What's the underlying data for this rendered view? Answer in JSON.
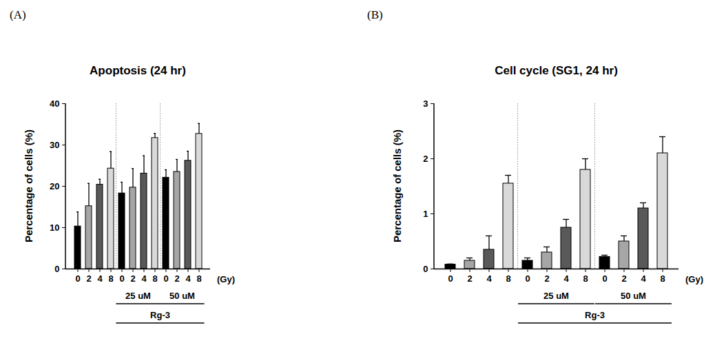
{
  "chart_data": [
    {
      "type": "bar",
      "panel_label": "(A)",
      "title": "Apoptosis (24 hr)",
      "ylabel": "Percentage of cells (%)",
      "xlabel": "(Gy)",
      "categories": [
        "0",
        "2",
        "4",
        "8",
        "0",
        "2",
        "4",
        "8",
        "0",
        "2",
        "4",
        "8"
      ],
      "groups": [
        [
          null,
          null,
          null,
          null,
          "25 uM",
          "25 uM",
          "25 uM",
          "25 uM",
          "50 uM",
          "50 uM",
          "50 uM",
          "50 uM"
        ],
        [
          null,
          null,
          null,
          null,
          "Rg-3",
          "Rg-3",
          "Rg-3",
          "Rg-3",
          "Rg-3",
          "Rg-3",
          "Rg-3",
          "Rg-3"
        ]
      ],
      "values": [
        10.3,
        15.2,
        20.4,
        24.3,
        18.3,
        19.7,
        23.1,
        31.7,
        22.1,
        23.5,
        26.2,
        32.7
      ],
      "errors": [
        3.5,
        5.5,
        1.3,
        4.1,
        2.7,
        4.6,
        4.3,
        1.1,
        1.9,
        3.0,
        2.3,
        2.5
      ],
      "colors": [
        "#000000",
        "#a6a6a6",
        "#595959",
        "#d9d9d9",
        "#000000",
        "#a6a6a6",
        "#595959",
        "#d9d9d9",
        "#000000",
        "#a6a6a6",
        "#595959",
        "#d9d9d9"
      ],
      "ylim": [
        0,
        40
      ],
      "yticks": [
        0,
        10,
        20,
        30,
        40
      ],
      "grid": false
    },
    {
      "type": "bar",
      "panel_label": "(B)",
      "title": "Cell cycle (SG1, 24 hr)",
      "ylabel": "Percentage of cells (%)",
      "xlabel": "(Gy)",
      "categories": [
        "0",
        "2",
        "4",
        "8",
        "0",
        "2",
        "4",
        "8",
        "0",
        "2",
        "4",
        "8"
      ],
      "groups": [
        [
          null,
          null,
          null,
          null,
          "25 uM",
          "25 uM",
          "25 uM",
          "25 uM",
          "50 uM",
          "50 uM",
          "50 uM",
          "50 uM"
        ],
        [
          null,
          null,
          null,
          null,
          "Rg-3",
          "Rg-3",
          "Rg-3",
          "Rg-3",
          "Rg-3",
          "Rg-3",
          "Rg-3",
          "Rg-3"
        ]
      ],
      "values": [
        0.08,
        0.15,
        0.35,
        1.55,
        0.15,
        0.3,
        0.75,
        1.8,
        0.22,
        0.5,
        1.1,
        2.1
      ],
      "errors": [
        0.01,
        0.05,
        0.25,
        0.15,
        0.05,
        0.1,
        0.15,
        0.2,
        0.03,
        0.1,
        0.1,
        0.3
      ],
      "colors": [
        "#000000",
        "#a6a6a6",
        "#595959",
        "#d9d9d9",
        "#000000",
        "#a6a6a6",
        "#595959",
        "#d9d9d9",
        "#000000",
        "#a6a6a6",
        "#595959",
        "#d9d9d9"
      ],
      "ylim": [
        0,
        3
      ],
      "yticks": [
        0,
        1,
        2,
        3
      ],
      "grid": false
    }
  ]
}
